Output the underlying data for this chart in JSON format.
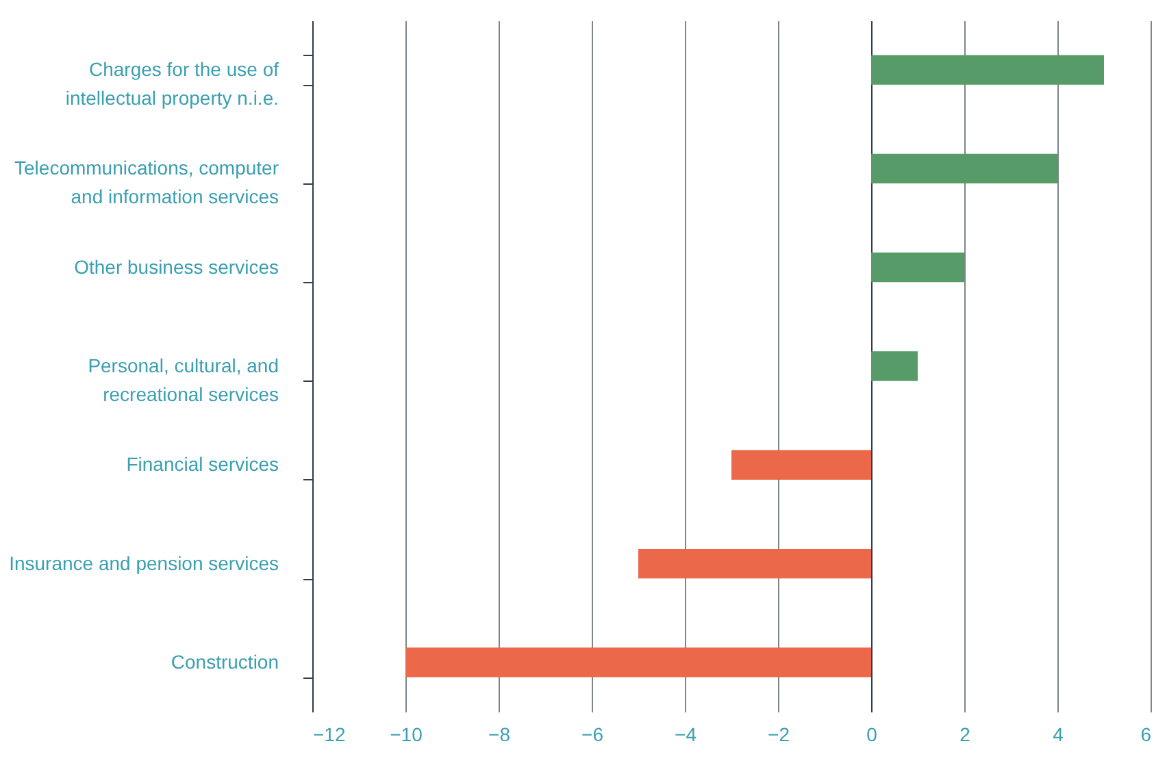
{
  "chart_data": {
    "type": "bar",
    "orientation": "horizontal",
    "categories": [
      "Charges for the use of intellectual property n.i.e.",
      "Telecommunications, computer and information services",
      "Other business services",
      "Personal, cultural, and recreational services",
      "Financial services",
      "Insurance and pension services",
      "Construction"
    ],
    "values": [
      5,
      4,
      2,
      1,
      -3,
      -5,
      -10
    ],
    "colors": [
      "#569b68",
      "#569b68",
      "#569b68",
      "#569b68",
      "#eb694a",
      "#eb694a",
      "#eb694a"
    ],
    "xlim": [
      -12,
      6
    ],
    "xticks": [
      -12,
      -10,
      -8,
      -6,
      -4,
      -2,
      0,
      2,
      4,
      6
    ],
    "grid": "x"
  }
}
